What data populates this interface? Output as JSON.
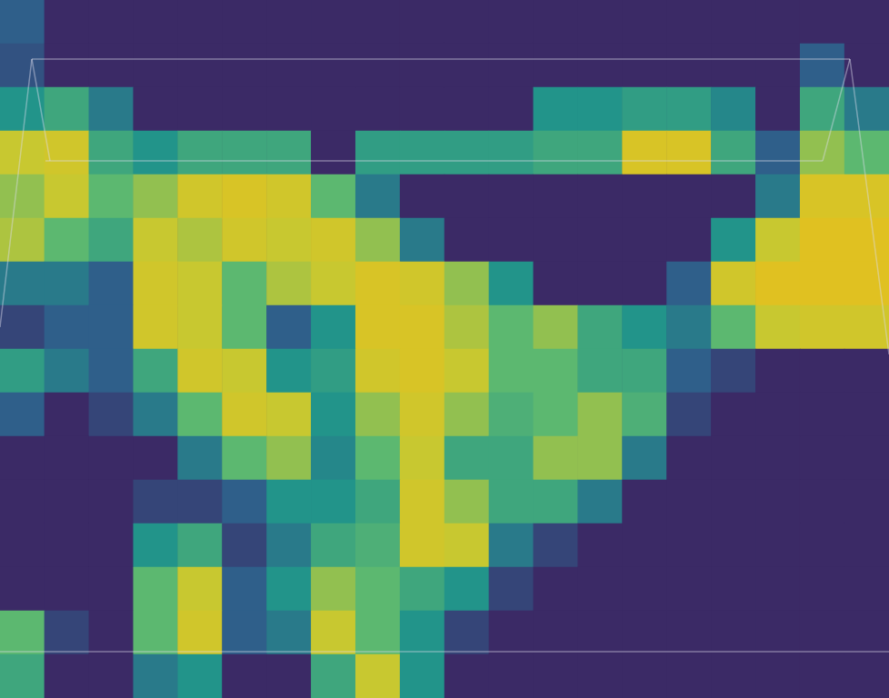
{
  "chart_data": {
    "type": "heatmap",
    "tick_labels": false,
    "grid": false,
    "colorbar_range": [
      0,
      1
    ],
    "cells": [
      [
        0.2,
        0,
        0,
        0,
        0,
        0,
        0,
        0,
        0,
        0,
        0,
        0,
        0,
        0,
        0,
        0,
        0,
        0,
        0,
        0
      ],
      [
        0.15,
        0,
        0,
        0,
        0,
        0,
        0,
        0,
        0,
        0,
        0,
        0,
        0,
        0,
        0,
        0,
        0,
        0,
        0.2,
        0
      ],
      [
        0.4,
        0.5,
        0.3,
        0,
        0,
        0,
        0,
        0,
        0,
        0,
        0,
        0,
        0.4,
        0.4,
        0.45,
        0.45,
        0.35,
        0,
        0.5,
        0.3
      ],
      [
        0.8,
        0.85,
        0.5,
        0.4,
        0.5,
        0.5,
        0.5,
        0,
        0.45,
        0.45,
        0.45,
        0.45,
        0.5,
        0.5,
        0.9,
        0.9,
        0.5,
        0.2,
        0.7,
        0.6
      ],
      [
        0.7,
        0.8,
        0.6,
        0.7,
        0.85,
        0.9,
        0.85,
        0.6,
        0.3,
        0,
        0,
        0,
        0,
        0,
        0,
        0,
        0,
        0.3,
        0.9,
        0.9
      ],
      [
        0.75,
        0.6,
        0.5,
        0.8,
        0.75,
        0.85,
        0.8,
        0.85,
        0.7,
        0.3,
        0,
        0,
        0,
        0,
        0,
        0,
        0.4,
        0.8,
        0.95,
        0.95
      ],
      [
        0.3,
        0.3,
        0.2,
        0.85,
        0.8,
        0.6,
        0.75,
        0.8,
        0.9,
        0.85,
        0.7,
        0.4,
        0,
        0,
        0,
        0.2,
        0.85,
        0.95,
        0.95,
        0.95
      ],
      [
        0.1,
        0.2,
        0.2,
        0.85,
        0.8,
        0.6,
        0.2,
        0.4,
        0.9,
        0.9,
        0.75,
        0.6,
        0.7,
        0.5,
        0.4,
        0.3,
        0.6,
        0.8,
        0.85,
        0.85
      ],
      [
        0.45,
        0.3,
        0.2,
        0.5,
        0.85,
        0.8,
        0.4,
        0.45,
        0.85,
        0.9,
        0.8,
        0.6,
        0.6,
        0.5,
        0.5,
        0.2,
        0.1,
        0,
        0,
        0
      ],
      [
        0.2,
        0,
        0.1,
        0.3,
        0.6,
        0.85,
        0.8,
        0.4,
        0.7,
        0.85,
        0.7,
        0.55,
        0.6,
        0.7,
        0.55,
        0.1,
        0,
        0,
        0,
        0
      ],
      [
        0,
        0,
        0,
        0,
        0.3,
        0.6,
        0.7,
        0.35,
        0.6,
        0.8,
        0.5,
        0.5,
        0.7,
        0.7,
        0.3,
        0,
        0,
        0,
        0,
        0
      ],
      [
        0,
        0,
        0,
        0.1,
        0.1,
        0.2,
        0.4,
        0.4,
        0.5,
        0.85,
        0.7,
        0.5,
        0.5,
        0.3,
        0,
        0,
        0,
        0,
        0,
        0
      ],
      [
        0,
        0,
        0,
        0.4,
        0.5,
        0.1,
        0.3,
        0.5,
        0.55,
        0.85,
        0.8,
        0.3,
        0.1,
        0,
        0,
        0,
        0,
        0,
        0,
        0
      ],
      [
        0,
        0,
        0,
        0.6,
        0.8,
        0.2,
        0.4,
        0.7,
        0.6,
        0.5,
        0.4,
        0.1,
        0,
        0,
        0,
        0,
        0,
        0,
        0,
        0
      ],
      [
        0.6,
        0.1,
        0,
        0.6,
        0.85,
        0.2,
        0.3,
        0.8,
        0.6,
        0.4,
        0.1,
        0,
        0,
        0,
        0,
        0,
        0,
        0,
        0,
        0
      ],
      [
        0.5,
        0,
        0,
        0.3,
        0.4,
        0,
        0,
        0.5,
        0.8,
        0.4,
        0,
        0,
        0,
        0,
        0,
        0,
        0,
        0,
        0,
        0
      ]
    ]
  }
}
